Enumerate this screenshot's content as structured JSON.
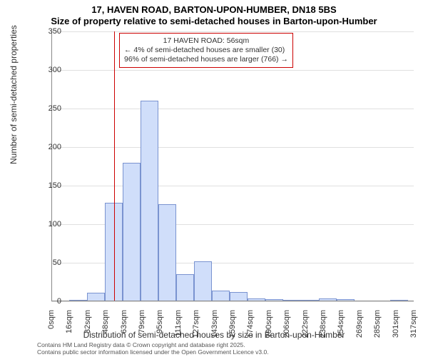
{
  "title_line1": "17, HAVEN ROAD, BARTON-UPON-HUMBER, DN18 5BS",
  "title_line2": "Size of property relative to semi-detached houses in Barton-upon-Humber",
  "ylabel": "Number of semi-detached properties",
  "xlabel": "Distribution of semi-detached houses by size in Barton-upon-Humber",
  "footer_line1": "Contains HM Land Registry data © Crown copyright and database right 2025.",
  "footer_line2": "Contains public sector information licensed under the Open Government Licence v3.0.",
  "annotation": {
    "line1": "17 HAVEN ROAD: 56sqm",
    "line2": "← 4% of semi-detached houses are smaller (30)",
    "line3": "96% of semi-detached houses are larger (766) →"
  },
  "chart": {
    "type": "histogram",
    "xlim": [
      0,
      325
    ],
    "ylim": [
      0,
      350
    ],
    "ytick_step": 50,
    "xtick_step": 16,
    "yticks": [
      0,
      50,
      100,
      150,
      200,
      250,
      300,
      350
    ],
    "xticks": [
      "0sqm",
      "16sqm",
      "32sqm",
      "48sqm",
      "63sqm",
      "79sqm",
      "95sqm",
      "111sqm",
      "127sqm",
      "143sqm",
      "159sqm",
      "174sqm",
      "190sqm",
      "206sqm",
      "222sqm",
      "238sqm",
      "254sqm",
      "269sqm",
      "285sqm",
      "301sqm",
      "317sqm"
    ],
    "bar_color": "#d0defa",
    "bar_border": "#7a93d0",
    "grid_color": "#e0e0e0",
    "axis_color": "#888888",
    "marker_color": "#cc0000",
    "marker_value": 56,
    "bins": [
      {
        "x": 16,
        "w": 16,
        "v": 2
      },
      {
        "x": 32,
        "w": 16,
        "v": 11
      },
      {
        "x": 48,
        "w": 16,
        "v": 128
      },
      {
        "x": 64,
        "w": 16,
        "v": 180
      },
      {
        "x": 80,
        "w": 16,
        "v": 260
      },
      {
        "x": 96,
        "w": 16,
        "v": 126
      },
      {
        "x": 112,
        "w": 16,
        "v": 35
      },
      {
        "x": 128,
        "w": 16,
        "v": 52
      },
      {
        "x": 144,
        "w": 16,
        "v": 14
      },
      {
        "x": 160,
        "w": 16,
        "v": 12
      },
      {
        "x": 176,
        "w": 16,
        "v": 4
      },
      {
        "x": 192,
        "w": 16,
        "v": 3
      },
      {
        "x": 208,
        "w": 16,
        "v": 2
      },
      {
        "x": 224,
        "w": 16,
        "v": 2
      },
      {
        "x": 240,
        "w": 16,
        "v": 4
      },
      {
        "x": 256,
        "w": 16,
        "v": 3
      },
      {
        "x": 304,
        "w": 16,
        "v": 2
      }
    ],
    "title_fontsize": 13,
    "label_fontsize": 12,
    "tick_fontsize": 11,
    "annot_fontsize": 10.5,
    "background_color": "#ffffff"
  }
}
